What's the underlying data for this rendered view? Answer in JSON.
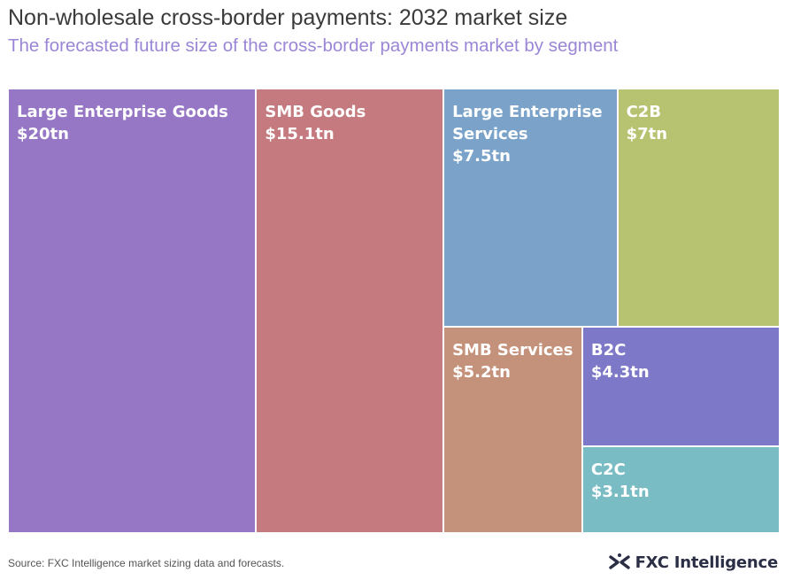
{
  "chart_data": {
    "type": "treemap",
    "title": "Non-wholesale cross-border payments: 2032 market size",
    "subtitle": "The forecasted future size of the cross-border payments market by segment",
    "unit": "$tn",
    "items": [
      {
        "label": "Large Enterprise Goods",
        "value": 20,
        "value_label": "$20tn",
        "color": "#9677c5"
      },
      {
        "label": "SMB Goods",
        "value": 15.1,
        "value_label": "$15.1tn",
        "color": "#c47a7e"
      },
      {
        "label": "Large Enterprise Services",
        "value": 7.5,
        "value_label": "$7.5tn",
        "color": "#7ba3c9"
      },
      {
        "label": "C2B",
        "value": 7,
        "value_label": "$7tn",
        "color": "#b7c370"
      },
      {
        "label": "SMB Services",
        "value": 5.2,
        "value_label": "$5.2tn",
        "color": "#c4917a"
      },
      {
        "label": "B2C",
        "value": 4.3,
        "value_label": "$4.3tn",
        "color": "#7d78c8"
      },
      {
        "label": "C2C",
        "value": 3.1,
        "value_label": "$3.1tn",
        "color": "#79bcc4"
      }
    ]
  },
  "footer": {
    "source": "Source: FXC Intelligence market sizing data and forecasts.",
    "brand": "FXC Intelligence"
  },
  "colors": {
    "title": "#3a3a3a",
    "subtitle": "#9b86d6",
    "brand_mark": "#2a2f45"
  }
}
